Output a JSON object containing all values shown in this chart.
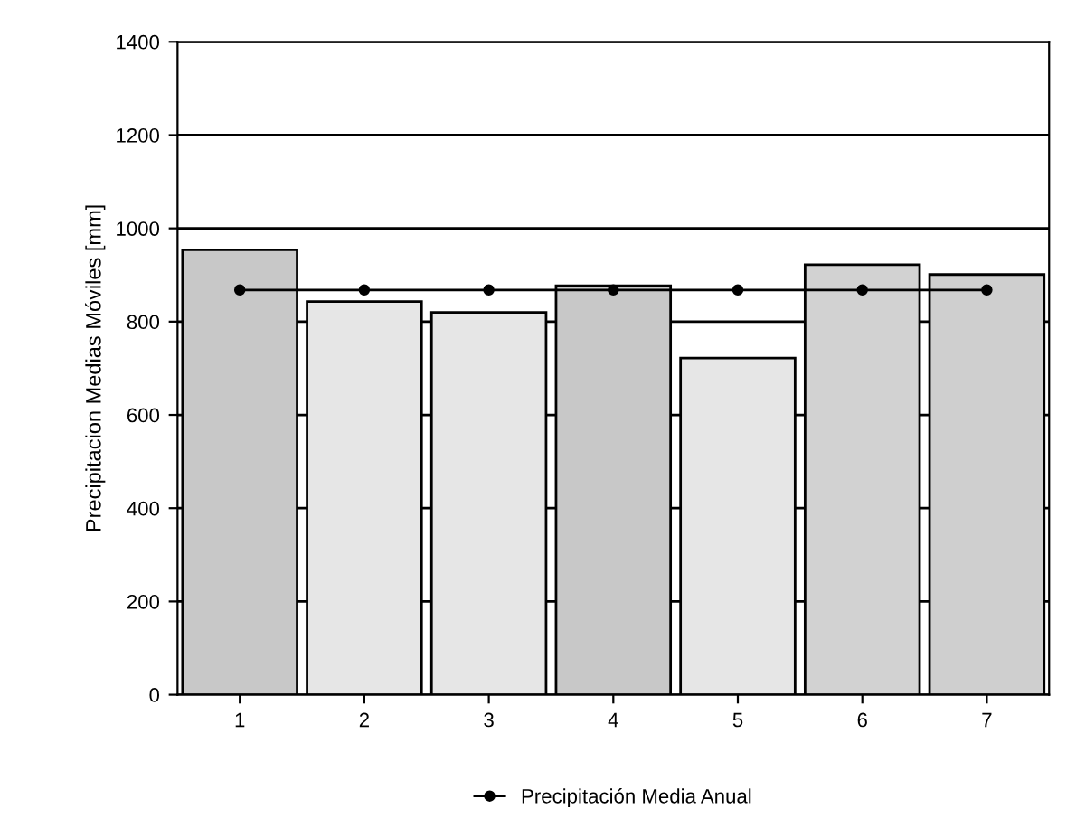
{
  "chart_data": {
    "type": "bar",
    "ylabel": "Precipitacion Medias Móviles [mm]",
    "categories": [
      "1",
      "2",
      "3",
      "4",
      "5",
      "6",
      "7"
    ],
    "series": [
      {
        "colors": [
          "#c8c8c8",
          "#e6e6e6",
          "#e6e6e6",
          "#c8c8c8",
          "#e6e6e6",
          "#d2d2d2",
          "#cfcfcf"
        ],
        "values": [
          954,
          843,
          820,
          877,
          722,
          922,
          901
        ]
      },
      {
        "type": "line",
        "name": "Precipitación Media Anual",
        "color": "#000000",
        "values": [
          868,
          868,
          868,
          868,
          868,
          868,
          868
        ]
      }
    ],
    "ylim": [
      0,
      1400
    ],
    "yticks": [
      0,
      200,
      400,
      600,
      800,
      1000,
      1200,
      1400
    ],
    "grid": "y",
    "legend": "bottom",
    "marker": "circle",
    "line_style": "solid"
  }
}
